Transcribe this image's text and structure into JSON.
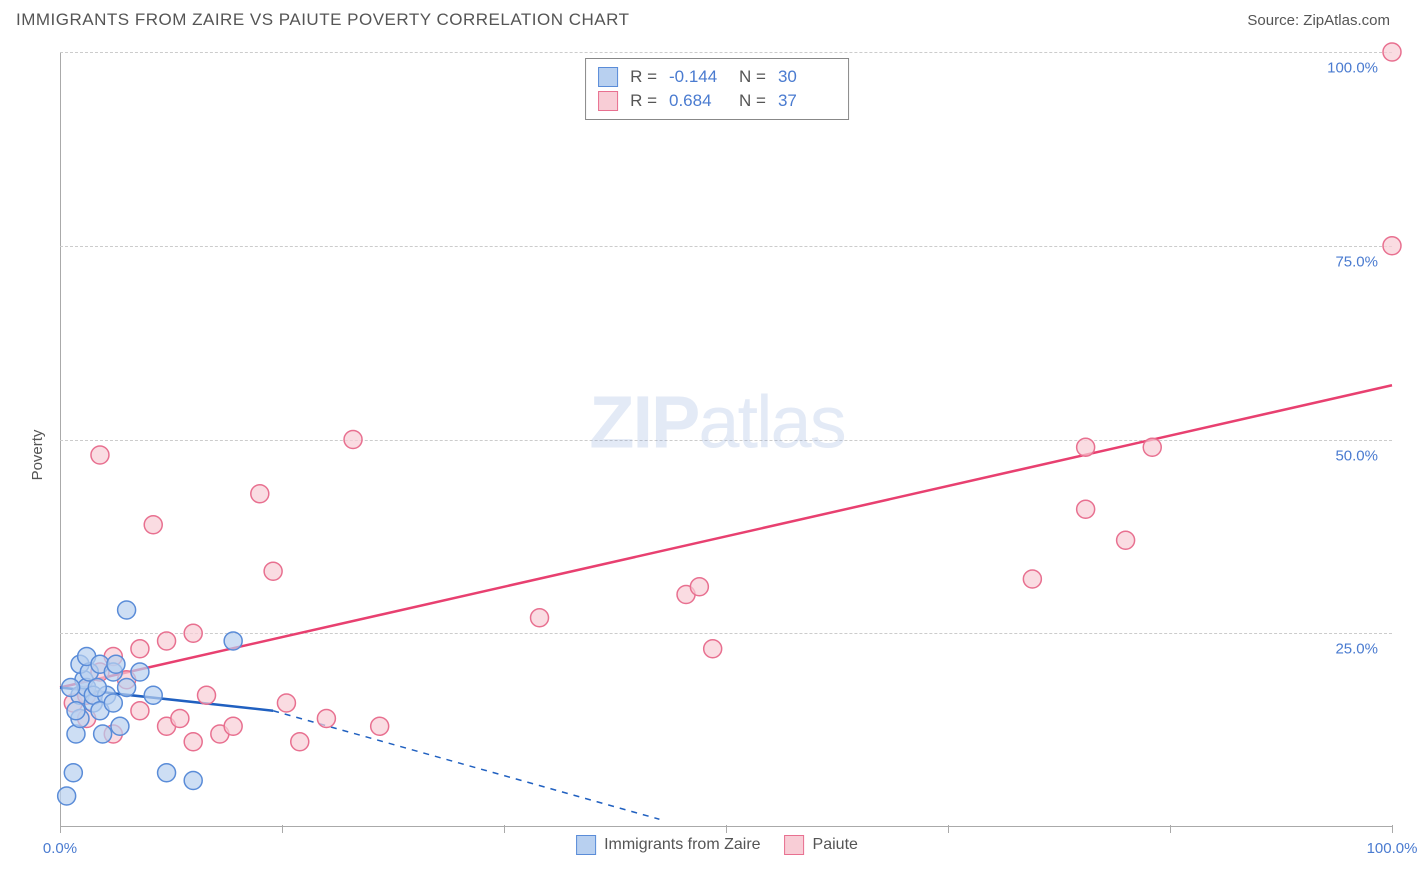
{
  "title": "IMMIGRANTS FROM ZAIRE VS PAIUTE POVERTY CORRELATION CHART",
  "source_prefix": "Source: ",
  "source_name": "ZipAtlas.com",
  "watermark_a": "ZIP",
  "watermark_b": "atlas",
  "ylabel": "Poverty",
  "chart": {
    "type": "scatter",
    "xlim": [
      0,
      100
    ],
    "ylim": [
      0,
      100
    ],
    "x_ticks": [
      0,
      16.67,
      33.33,
      50,
      66.67,
      83.33,
      100
    ],
    "x_tick_labels": {
      "0": "0.0%",
      "100": "100.0%"
    },
    "y_gridlines": [
      25,
      50,
      75,
      100
    ],
    "y_tick_labels": {
      "25": "25.0%",
      "50": "50.0%",
      "75": "75.0%",
      "100": "100.0%"
    },
    "background_color": "#ffffff",
    "grid_color": "#cccccc",
    "axis_color": "#aaaaaa",
    "label_color": "#4a7bd0",
    "marker_radius": 9,
    "marker_stroke_width": 1.5,
    "trend_line_width": 2.5,
    "trend_dash_width": 1.5
  },
  "series": [
    {
      "name": "Immigrants from Zaire",
      "fill": "#b8d0f0",
      "stroke": "#5a8cd8",
      "line_color": "#2060c0",
      "R": "-0.144",
      "N": "30",
      "trend": {
        "x1": 0,
        "y1": 18,
        "x2_solid": 16,
        "y2_solid": 15,
        "x2_dash": 45,
        "y2_dash": 1
      },
      "points": [
        [
          0.5,
          4
        ],
        [
          1,
          7
        ],
        [
          1.2,
          12
        ],
        [
          1.5,
          14
        ],
        [
          1.5,
          17
        ],
        [
          1.8,
          19
        ],
        [
          1.5,
          21
        ],
        [
          1.2,
          15
        ],
        [
          2,
          18
        ],
        [
          2.2,
          20
        ],
        [
          2.5,
          16
        ],
        [
          2,
          22
        ],
        [
          2.5,
          17
        ],
        [
          3,
          21
        ],
        [
          3.5,
          17
        ],
        [
          3,
          15
        ],
        [
          4,
          16
        ],
        [
          4,
          20
        ],
        [
          4.2,
          21
        ],
        [
          5,
          18
        ],
        [
          5,
          28
        ],
        [
          6,
          20
        ],
        [
          7,
          17
        ],
        [
          10,
          6
        ],
        [
          8,
          7
        ],
        [
          13,
          24
        ],
        [
          4.5,
          13
        ],
        [
          3.2,
          12
        ],
        [
          2.8,
          18
        ],
        [
          0.8,
          18
        ]
      ]
    },
    {
      "name": "Paiute",
      "fill": "#f8cdd6",
      "stroke": "#e87090",
      "line_color": "#e84070",
      "R": "0.684",
      "N": "37",
      "trend": {
        "x1": 0,
        "y1": 18,
        "x2_solid": 100,
        "y2_solid": 57,
        "x2_dash": 100,
        "y2_dash": 57
      },
      "points": [
        [
          1,
          16
        ],
        [
          2,
          14
        ],
        [
          2,
          17
        ],
        [
          3,
          48
        ],
        [
          4,
          12
        ],
        [
          5,
          19
        ],
        [
          6,
          23
        ],
        [
          7,
          39
        ],
        [
          8,
          13
        ],
        [
          9,
          14
        ],
        [
          10,
          25
        ],
        [
          10,
          11
        ],
        [
          11,
          17
        ],
        [
          12,
          12
        ],
        [
          13,
          13
        ],
        [
          15,
          43
        ],
        [
          16,
          33
        ],
        [
          17,
          16
        ],
        [
          18,
          11
        ],
        [
          20,
          14
        ],
        [
          22,
          50
        ],
        [
          24,
          13
        ],
        [
          36,
          27
        ],
        [
          47,
          30
        ],
        [
          48,
          31
        ],
        [
          49,
          23
        ],
        [
          73,
          32
        ],
        [
          77,
          41
        ],
        [
          77,
          49
        ],
        [
          80,
          37
        ],
        [
          82,
          49
        ],
        [
          100,
          100
        ],
        [
          100,
          75
        ],
        [
          4,
          22
        ],
        [
          6,
          15
        ],
        [
          3,
          20
        ],
        [
          8,
          24
        ]
      ]
    }
  ],
  "top_legend": {
    "R_label": "R =",
    "N_label": "N ="
  }
}
